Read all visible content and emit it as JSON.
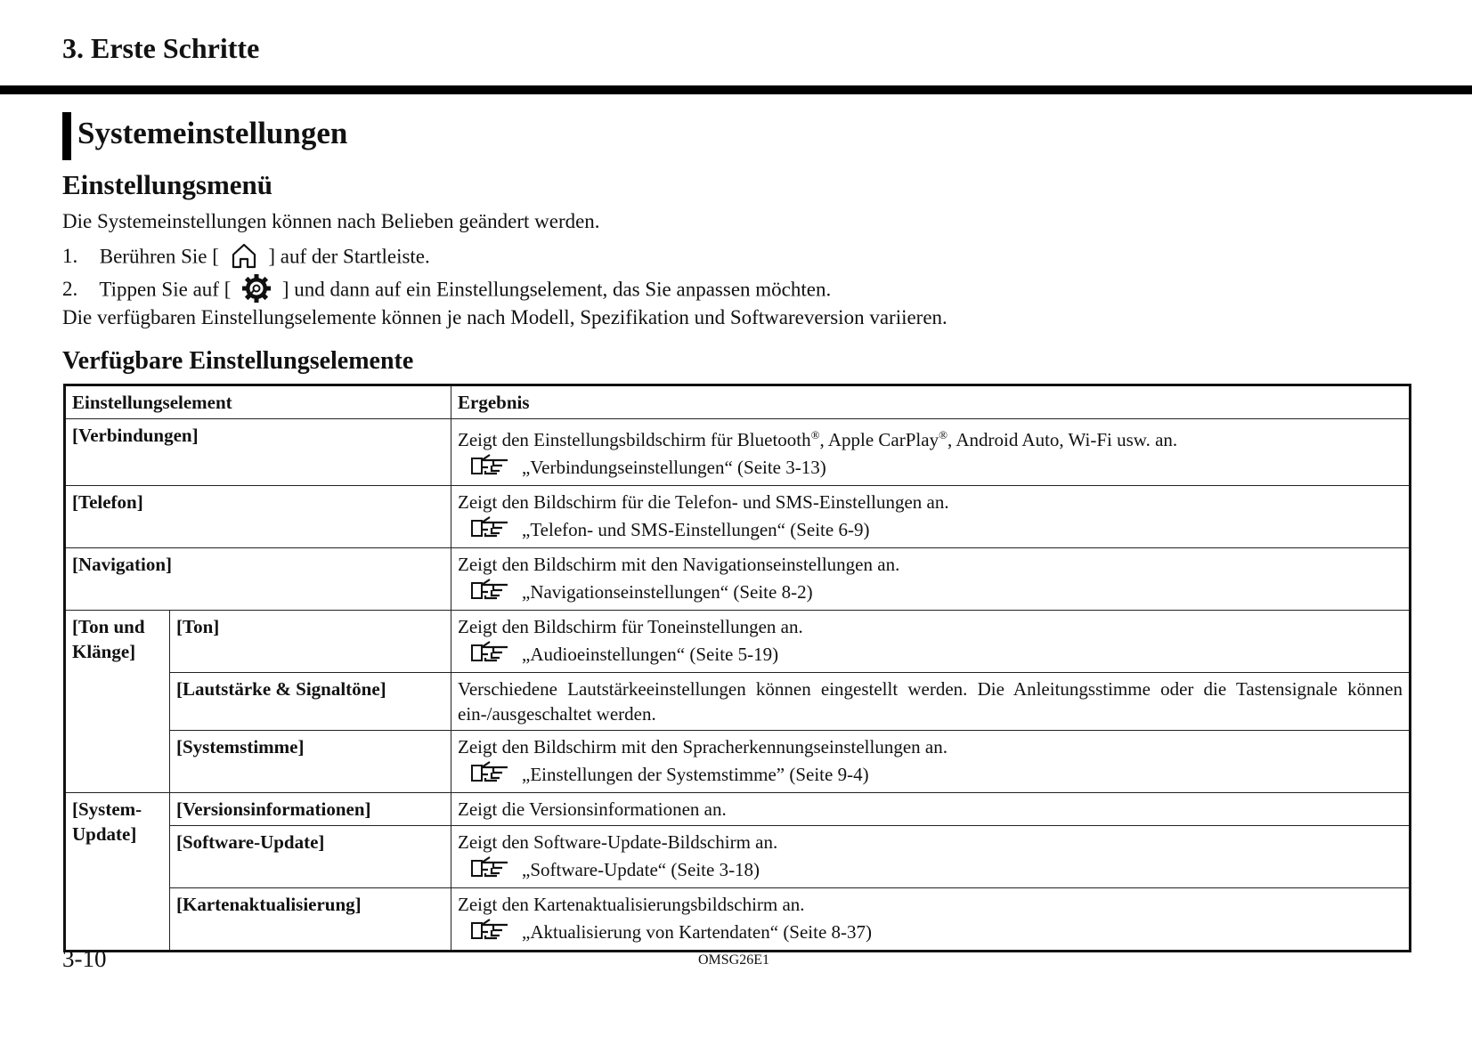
{
  "chapter_title": "3. Erste Schritte",
  "section_title": "Systemeinstellungen",
  "subsection_title": "Einstellungsmenü",
  "intro": "Die Systemeinstellungen können nach Belieben geändert werden.",
  "steps": [
    {
      "num": "1.",
      "before": "Berühren Sie [",
      "icon": "home-icon",
      "after": "] auf der Startleiste."
    },
    {
      "num": "2.",
      "before": "Tippen Sie auf [",
      "icon": "gear-icon",
      "after": "] und dann auf ein Einstellungselement, das Sie anpassen möchten."
    }
  ],
  "note": "Die verfügbaren Einstellungselemente können je nach Modell, Spezifikation und Softwareversion variieren.",
  "table_title": "Verfügbare Einstellungselemente",
  "table": {
    "headers": [
      "Einstellungselement",
      "Ergebnis"
    ],
    "rows": {
      "verbindungen": {
        "item": "[Verbindungen]",
        "result_a": "Zeigt den Einstellungsbildschirm für Bluetooth",
        "reg": "®",
        "result_b": ", Apple CarPlay",
        "result_c": ", Android Auto, Wi-Fi usw. an.",
        "ref": "„Verbindungseinstellungen“ (Seite 3-13)"
      },
      "telefon": {
        "item": "[Telefon]",
        "result": "Zeigt den Bildschirm für die Telefon- und SMS-Einstellungen an.",
        "ref": "„Telefon- und SMS-Einstellungen“ (Seite 6-9)"
      },
      "navigation": {
        "item": "[Navigation]",
        "result": "Zeigt den Bildschirm mit den Navigationseinstellungen an.",
        "ref": "„Navigationseinstellungen“ (Seite 8-2)"
      },
      "ton_group": "[Ton und Klänge]",
      "ton": {
        "item": "[Ton]",
        "result": "Zeigt den Bildschirm für Toneinstellungen an.",
        "ref": "„Audioeinstellungen“ (Seite 5-19)"
      },
      "lautstaerke": {
        "item": "[Lautstärke & Signaltöne]",
        "result": "Verschiedene Lautstärkeeinstellungen können eingestellt werden. Die Anleitungsstimme oder die Tastensignale können ein-/ausgeschaltet werden."
      },
      "systemstimme": {
        "item": "[Systemstimme]",
        "result": "Zeigt den Bildschirm mit den Spracherkennungseinstellungen an.",
        "ref": "„Einstellungen der Systemstimme” (Seite 9-4)"
      },
      "update_group": "[System-Update]",
      "version": {
        "item": "[Versionsinformationen]",
        "result": "Zeigt die Versionsinformationen an."
      },
      "software": {
        "item": "[Software-Update]",
        "result": "Zeigt den Software-Update-Bildschirm an.",
        "ref": "„Software-Update“ (Seite 3-18)"
      },
      "karten": {
        "item": "[Kartenaktualisierung]",
        "result": "Zeigt den Kartenaktualisierungsbildschirm an.",
        "ref": "„Aktualisierung von Kartendaten“ (Seite 8-37)"
      }
    }
  },
  "reference_icon": "pointing-hand-icon",
  "footer": {
    "page_number": "3-10",
    "doc_code": "OMSG26E1"
  }
}
